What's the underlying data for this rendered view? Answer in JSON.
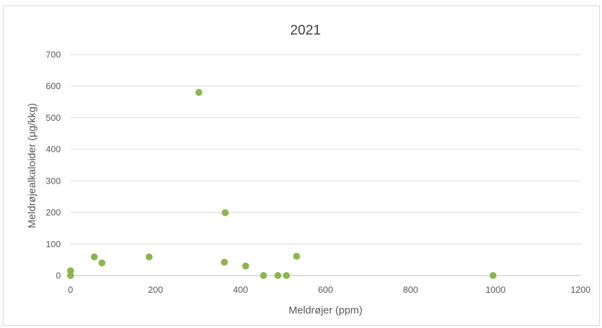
{
  "chart_data": {
    "type": "scatter",
    "title": "2021",
    "xlabel": "Meldrøjer (ppm)",
    "ylabel": "Meldrøjealkaloider (µg/kkg)",
    "xlim": [
      0,
      1200
    ],
    "ylim": [
      0,
      700
    ],
    "xticks": [
      0,
      200,
      400,
      600,
      800,
      1000,
      1200
    ],
    "yticks": [
      0,
      100,
      200,
      300,
      400,
      500,
      600,
      700
    ],
    "grid": true,
    "legend": "none",
    "marker_color": "#8db54e",
    "series": [
      {
        "points": [
          {
            "x": 0,
            "y": 15
          },
          {
            "x": 0,
            "y": 0
          },
          {
            "x": 56,
            "y": 59
          },
          {
            "x": 74,
            "y": 40
          },
          {
            "x": 185,
            "y": 59
          },
          {
            "x": 302,
            "y": 580
          },
          {
            "x": 364,
            "y": 199
          },
          {
            "x": 362,
            "y": 42
          },
          {
            "x": 412,
            "y": 30
          },
          {
            "x": 454,
            "y": 0
          },
          {
            "x": 488,
            "y": 0
          },
          {
            "x": 508,
            "y": 0
          },
          {
            "x": 532,
            "y": 61
          },
          {
            "x": 994,
            "y": 0
          }
        ]
      }
    ]
  }
}
